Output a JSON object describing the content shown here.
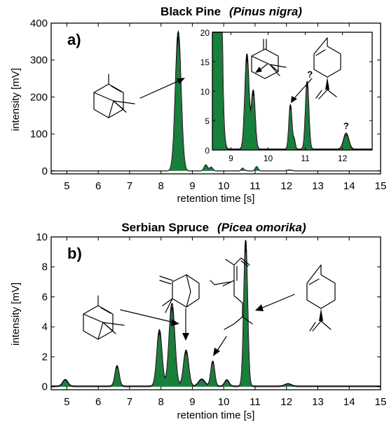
{
  "chart_data": [
    {
      "type": "area",
      "panel_label": "a)",
      "title_main": "Black Pine",
      "title_species": "(Pinus nigra)",
      "xlabel": "retention time [s]",
      "ylabel": "intensity [mV]",
      "xlim": [
        4.5,
        15
      ],
      "ylim": [
        -8,
        400
      ],
      "xticks": [
        5,
        6,
        7,
        8,
        9,
        10,
        11,
        12,
        13,
        14,
        15
      ],
      "yticks": [
        0,
        100,
        200,
        300,
        400
      ],
      "fill_color": "#17803a",
      "line_color": "#000000",
      "peaks": [
        {
          "rt": 8.55,
          "height": 362,
          "width": 0.09
        },
        {
          "rt": 9.43,
          "height": 15.5,
          "width": 0.055
        },
        {
          "rt": 9.6,
          "height": 9.5,
          "width": 0.05
        },
        {
          "rt": 10.6,
          "height": 7.2,
          "width": 0.04
        },
        {
          "rt": 10.7,
          "height": 1.5,
          "width": 0.03
        },
        {
          "rt": 11.05,
          "height": 11.0,
          "width": 0.045
        },
        {
          "rt": 12.1,
          "height": 2.6,
          "width": 0.07
        }
      ],
      "annotations": [],
      "inset": {
        "xlim": [
          8.5,
          12.8
        ],
        "ylim": [
          0,
          20
        ],
        "xticks": [
          9,
          10,
          11,
          12
        ],
        "yticks": [
          0,
          5,
          10,
          15,
          20
        ],
        "annotations": [
          {
            "text": "?",
            "x": 11.05,
            "y": 12.3
          },
          {
            "text": "?",
            "x": 12.1,
            "y": 3.6
          }
        ]
      }
    },
    {
      "type": "area",
      "panel_label": "b)",
      "title_main": "Serbian Spruce",
      "title_species": "(Picea omorika)",
      "xlabel": "retention time [s]",
      "ylabel": "intensity [mV]",
      "xlim": [
        4.5,
        15
      ],
      "ylim": [
        -0.2,
        10
      ],
      "xticks": [
        5,
        6,
        7,
        8,
        9,
        10,
        11,
        12,
        13,
        14,
        15
      ],
      "yticks": [
        0,
        2,
        4,
        6,
        8,
        10
      ],
      "fill_color": "#17803a",
      "line_color": "#000000",
      "peaks": [
        {
          "rt": 4.95,
          "height": 0.42,
          "width": 0.08
        },
        {
          "rt": 6.6,
          "height": 1.3,
          "width": 0.065
        },
        {
          "rt": 7.95,
          "height": 3.6,
          "width": 0.08
        },
        {
          "rt": 8.35,
          "height": 5.3,
          "width": 0.09
        },
        {
          "rt": 8.8,
          "height": 2.3,
          "width": 0.08
        },
        {
          "rt": 9.3,
          "height": 0.45,
          "width": 0.1
        },
        {
          "rt": 9.65,
          "height": 1.6,
          "width": 0.06
        },
        {
          "rt": 10.1,
          "height": 0.4,
          "width": 0.07
        },
        {
          "rt": 10.7,
          "height": 9.4,
          "width": 0.06
        },
        {
          "rt": 12.05,
          "height": 0.15,
          "width": 0.1
        }
      ],
      "annotations": []
    }
  ]
}
